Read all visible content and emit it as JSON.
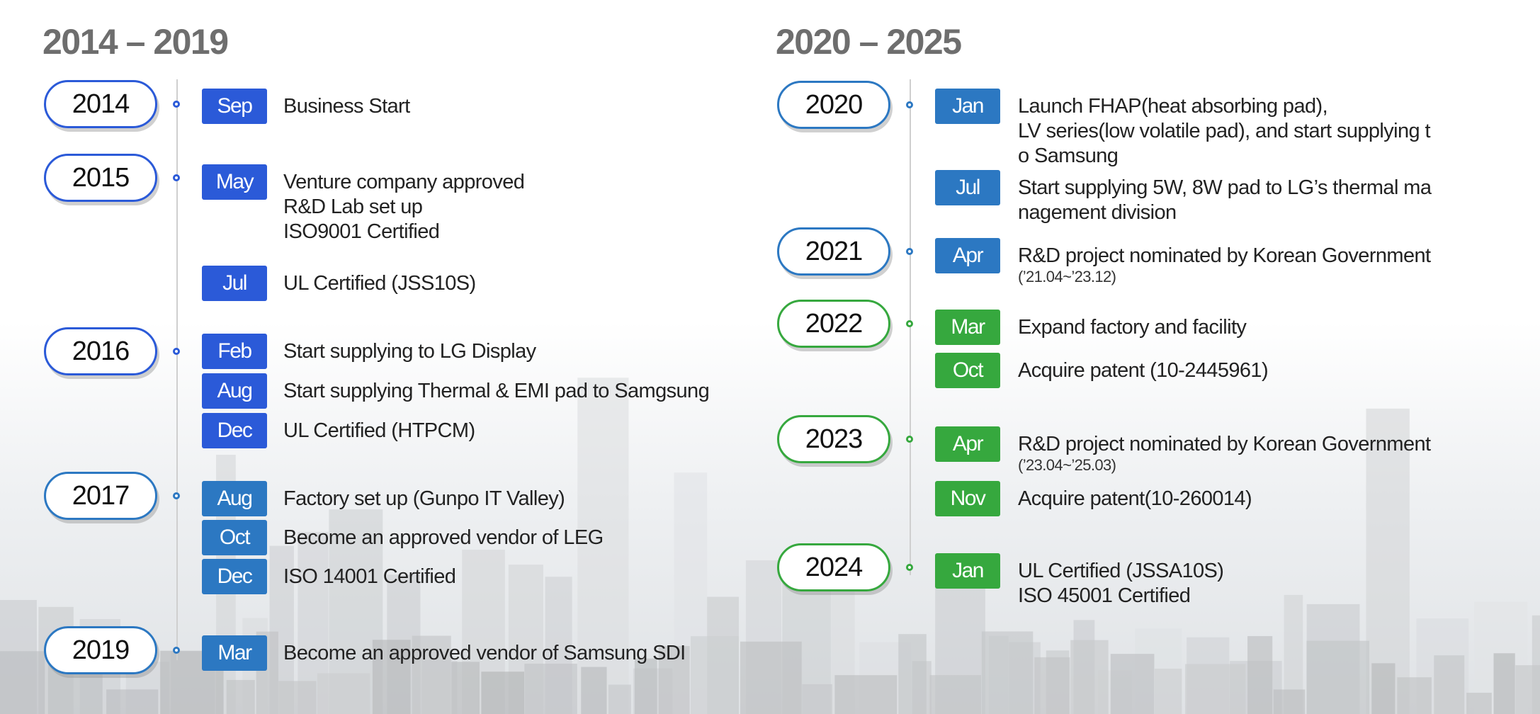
{
  "headings": {
    "left": "2014 – 2019",
    "right": "2020 – 2025"
  },
  "colors": {
    "blue": "#2b5ad8",
    "steel": "#2c78c2",
    "green": "#36a83e",
    "heading": "#6e6e6e"
  },
  "left": [
    {
      "year": "2014",
      "events": [
        {
          "month": "Sep",
          "lines": [
            "Business Start"
          ]
        }
      ]
    },
    {
      "year": "2015",
      "events": [
        {
          "month": "May",
          "lines": [
            "Venture company approved",
            "R&D Lab set up",
            "ISO9001 Certified"
          ]
        },
        {
          "month": "Jul",
          "lines": [
            "UL Certified (JSS10S)"
          ]
        }
      ]
    },
    {
      "year": "2016",
      "events": [
        {
          "month": "Feb",
          "lines": [
            "Start supplying to LG Display"
          ]
        },
        {
          "month": "Aug",
          "lines": [
            "Start supplying Thermal & EMI pad to Samgsung"
          ]
        },
        {
          "month": "Dec",
          "lines": [
            "UL Certified (HTPCM)"
          ]
        }
      ]
    },
    {
      "year": "2017",
      "events": [
        {
          "month": "Aug",
          "lines": [
            "Factory set up (Gunpo IT Valley)"
          ]
        },
        {
          "month": "Oct",
          "lines": [
            "Become an approved vendor of LEG"
          ]
        },
        {
          "month": "Dec",
          "lines": [
            "ISO 14001 Certified"
          ]
        }
      ]
    },
    {
      "year": "2019",
      "events": [
        {
          "month": "Mar",
          "lines": [
            "Become an approved vendor of Samsung SDI"
          ]
        }
      ]
    }
  ],
  "right": [
    {
      "year": "2020",
      "events": [
        {
          "month": "Jan",
          "lines": [
            "Launch FHAP(heat absorbing pad),",
            "LV series(low volatile pad), and start supplying t",
            "o Samsung"
          ]
        },
        {
          "month": "Jul",
          "lines": [
            "Start supplying 5W, 8W pad to LG’s thermal ma",
            "nagement division"
          ]
        }
      ]
    },
    {
      "year": "2021",
      "events": [
        {
          "month": "Apr",
          "lines": [
            "R&D project nominated by Korean Government"
          ],
          "sub": "(’21.04~’23.12)"
        }
      ]
    },
    {
      "year": "2022",
      "events": [
        {
          "month": "Mar",
          "lines": [
            "Expand factory and facility"
          ]
        },
        {
          "month": "Oct",
          "lines": [
            "Acquire patent (10-2445961)"
          ]
        }
      ]
    },
    {
      "year": "2023",
      "events": [
        {
          "month": "Apr",
          "lines": [
            "R&D project nominated by Korean Government"
          ],
          "sub": "(’23.04~’25.03)"
        },
        {
          "month": "Nov",
          "lines": [
            "Acquire patent(10-260014)"
          ]
        }
      ]
    },
    {
      "year": "2024",
      "events": [
        {
          "month": "Jan",
          "lines": [
            "UL Certified (JSSA10S)",
            "ISO 45001 Certified"
          ]
        }
      ]
    }
  ]
}
